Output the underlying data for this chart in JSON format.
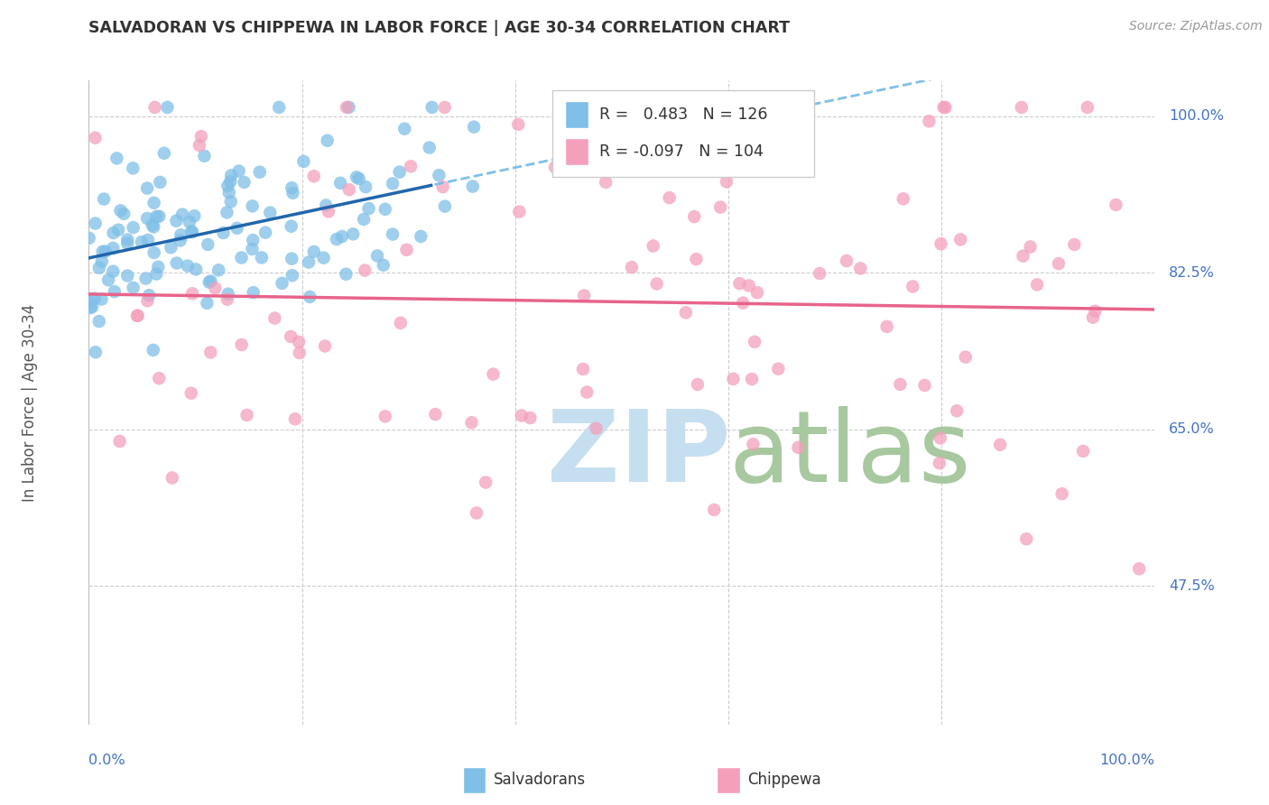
{
  "title": "SALVADORAN VS CHIPPEWA IN LABOR FORCE | AGE 30-34 CORRELATION CHART",
  "source": "Source: ZipAtlas.com",
  "ylabel": "In Labor Force | Age 30-34",
  "blue_color": "#7fbfe8",
  "pink_color": "#f4a0bb",
  "blue_line_color": "#2166ac",
  "pink_line_color": "#e8648a",
  "blue_dashed_color": "#7fbfe8",
  "legend_blue_label": "R =   0.483   N = 126",
  "legend_pink_label": "R = -0.097   N = 104",
  "legend_bottom_blue": "Salvadorans",
  "legend_bottom_pink": "Chippewa",
  "R_blue": 0.483,
  "N_blue": 126,
  "R_pink": -0.097,
  "N_pink": 104,
  "background_color": "#ffffff",
  "grid_color": "#cccccc",
  "ytick_positions": [
    1.0,
    0.825,
    0.65,
    0.475
  ],
  "ytick_labels": [
    "100.0%",
    "82.5%",
    "65.0%",
    "47.5%"
  ],
  "xmin": 0.0,
  "xmax": 1.0,
  "ymin": 0.32,
  "ymax": 1.04,
  "watermark_zip_color": "#c5dff0",
  "watermark_atlas_color": "#a8c8a0",
  "title_color": "#333333",
  "source_color": "#999999",
  "label_color": "#4472c4"
}
